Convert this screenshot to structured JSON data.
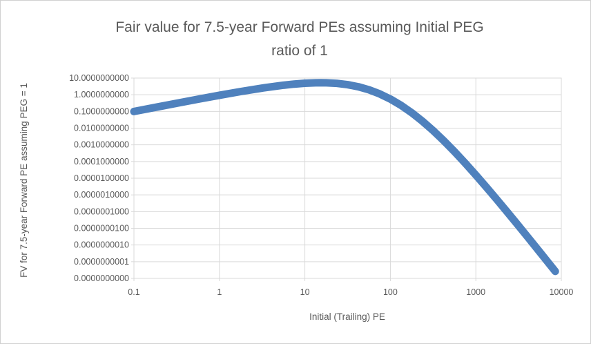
{
  "window": {
    "background_color": "#FFFFFF",
    "frame_border_color": "#D0D0D0"
  },
  "colors": {
    "series_line": "#4F81BD",
    "gridline": "#D9D9D9",
    "plot_border": "#D9D9D9",
    "text": "#595959"
  },
  "chart_data": {
    "type": "line",
    "title": "Fair value for 7.5-year Forward PEs assuming Initial PEG ratio of 1",
    "title_lines": [
      "Fair value for 7.5-year Forward PEs assuming Initial PEG",
      "ratio of 1"
    ],
    "xlabel": "Initial (Trailing) PE",
    "ylabel": "FV for 7.5-year Forward PE assuming PEG = 1",
    "x_scale": "log",
    "y_scale": "log",
    "xlim": [
      0.1,
      10000
    ],
    "ylim": [
      1e-11,
      10
    ],
    "grid": true,
    "legend": false,
    "x_ticks": [
      0.1,
      1,
      10,
      100,
      1000,
      10000
    ],
    "x_tick_labels": [
      "0.1",
      "1",
      "10",
      "100",
      "1000",
      "10000"
    ],
    "y_ticks": [
      10,
      1,
      0.1,
      0.01,
      0.001,
      0.0001,
      1e-05,
      1e-06,
      1e-07,
      1e-08,
      1e-09,
      1e-10,
      1e-11
    ],
    "y_tick_labels": [
      "10.0000000000",
      "1.0000000000",
      "0.1000000000",
      "0.0100000000",
      "0.0010000000",
      "0.0001000000",
      "0.0000100000",
      "0.0000010000",
      "0.0000001000",
      "0.0000000100",
      "0.0000000010",
      "0.0000000001",
      "0.0000000000"
    ],
    "series": [
      {
        "name": "FV for 7.5-year Forward PE assuming PEG = 1",
        "color": "#4F81BD",
        "stroke_width": 11,
        "x": [
          0.1,
          0.17783,
          0.31623,
          0.56234,
          1,
          1.77828,
          3.16228,
          5.62341,
          7.49894,
          10,
          13.3352,
          15.3846,
          17.7828,
          23.7137,
          31.6228,
          42.1697,
          56.2341,
          74.9894,
          100,
          133.352,
          177.828,
          237.137,
          316.228,
          421.697,
          562.341,
          749.894,
          1000,
          1333.52,
          1778.28,
          2371.37,
          3162.28,
          4216.97,
          5623.41,
          7498.94,
          8500
        ],
        "y": [
          0.09925,
          0.17547,
          0.30886,
          0.5392,
          0.92814,
          1.5579,
          2.504,
          3.7309,
          4.3595,
          4.894,
          5.2133,
          5.2615,
          5.2096,
          4.8066,
          4.0272,
          3.0107,
          1.9813,
          1.1283,
          0.5525,
          0.2317,
          0.083432,
          0.026111,
          0.0071599,
          0.0017549,
          0.00039082,
          8.0314e-05,
          1.5475e-05,
          2.8287e-06,
          4.9733e-07,
          8.468e-08,
          1.4077e-08,
          2.2961e-09,
          3.694e-10,
          5.874e-11,
          2.64e-11
        ]
      }
    ]
  }
}
